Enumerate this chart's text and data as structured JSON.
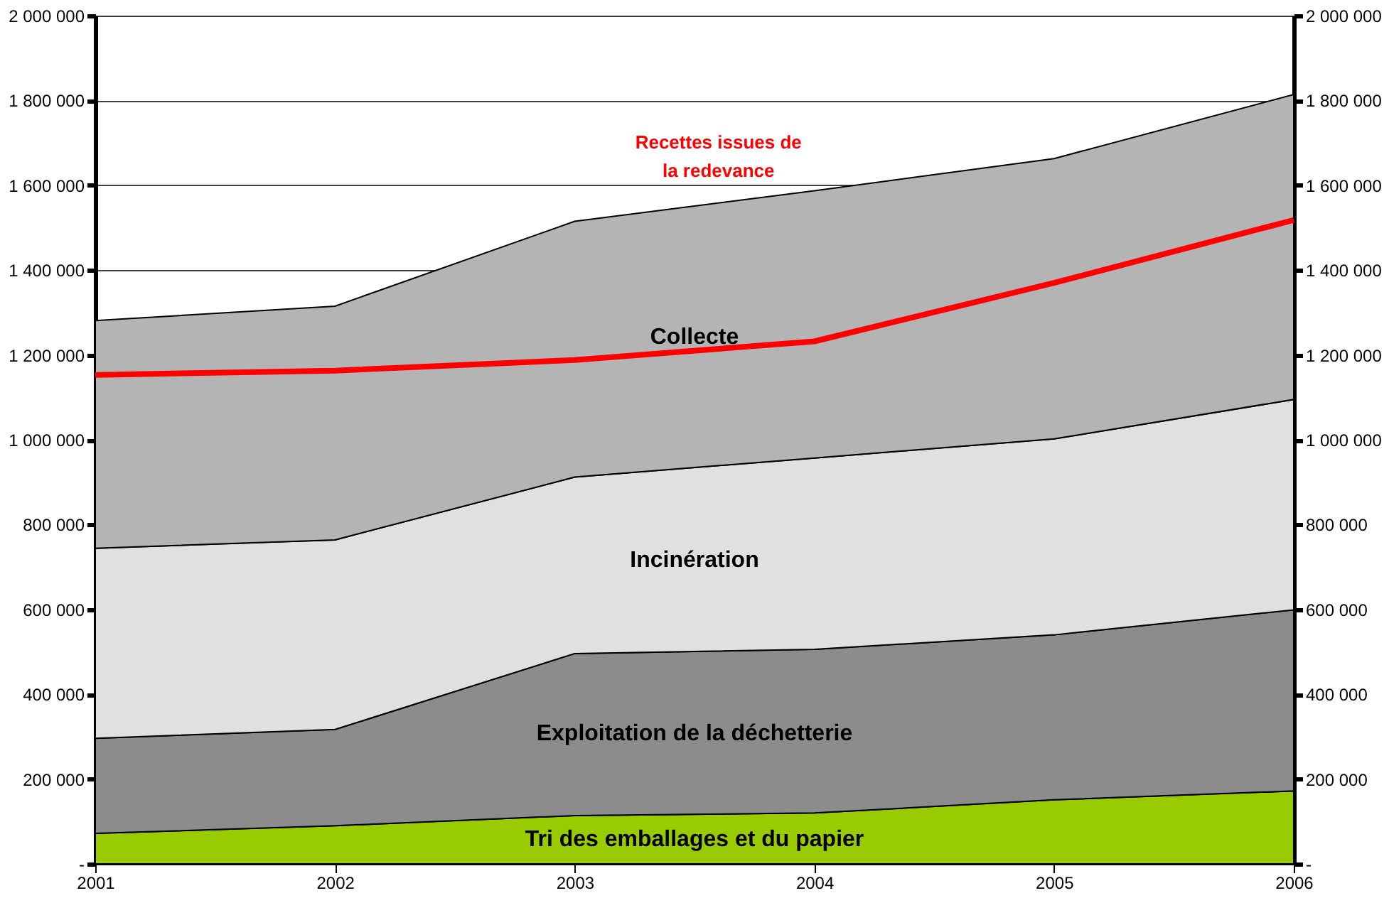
{
  "chart_data": {
    "type": "area",
    "stacked": true,
    "x": [
      2001,
      2002,
      2003,
      2004,
      2005,
      2006
    ],
    "series": [
      {
        "name": "Tri des emballages et du papier",
        "color": "#99cc00",
        "values": [
          72000,
          90000,
          114000,
          120000,
          151000,
          172000
        ]
      },
      {
        "name": "Exploitation de la déchetterie",
        "color": "#8c8c8c",
        "values": [
          224000,
          227000,
          382000,
          386000,
          389000,
          427000
        ]
      },
      {
        "name": "Incinération",
        "color": "#e0e0e0",
        "values": [
          448000,
          447000,
          416000,
          451000,
          462000,
          496000
        ]
      },
      {
        "name": "Collecte",
        "color": "#b4b4b4",
        "values": [
          537000,
          551000,
          603000,
          630000,
          661000,
          719000
        ]
      },
      {
        "name": "Recettes issues de la redevance",
        "type": "line",
        "color": "#ff0000",
        "values": [
          1153000,
          1163000,
          1188000,
          1232000,
          1370000,
          1518000
        ]
      }
    ],
    "xlim": [
      2001,
      2006
    ],
    "xticks": [
      2001,
      2002,
      2003,
      2004,
      2005,
      2006
    ],
    "ylim": [
      0,
      2000000
    ],
    "yticks": [
      {
        "value": 0,
        "label": "-"
      },
      {
        "value": 200000,
        "label": "200 000"
      },
      {
        "value": 400000,
        "label": "400 000"
      },
      {
        "value": 600000,
        "label": "600 000"
      },
      {
        "value": 800000,
        "label": "800 000"
      },
      {
        "value": 1000000,
        "label": "1 000 000"
      },
      {
        "value": 1200000,
        "label": "1 200 000"
      },
      {
        "value": 1400000,
        "label": "1 400 000"
      },
      {
        "value": 1600000,
        "label": "1 600 000"
      },
      {
        "value": 1800000,
        "label": "1 800 000"
      },
      {
        "value": 2000000,
        "label": "2 000 000"
      }
    ],
    "y2lim": [
      0,
      2000000
    ],
    "y2ticks": [
      {
        "value": 0,
        "label": "-"
      },
      {
        "value": 200000,
        "label": "200 000"
      },
      {
        "value": 400000,
        "label": "400 000"
      },
      {
        "value": 600000,
        "label": "600 000"
      },
      {
        "value": 800000,
        "label": "800 000"
      },
      {
        "value": 1000000,
        "label": "1 000 000"
      },
      {
        "value": 1200000,
        "label": "1 200 000"
      },
      {
        "value": 1400000,
        "label": "1 400 000"
      },
      {
        "value": 1600000,
        "label": "1 600 000"
      },
      {
        "value": 1800000,
        "label": "1 800 000"
      },
      {
        "value": 2000000,
        "label": "2 000 000"
      }
    ],
    "grid": "y"
  }
}
